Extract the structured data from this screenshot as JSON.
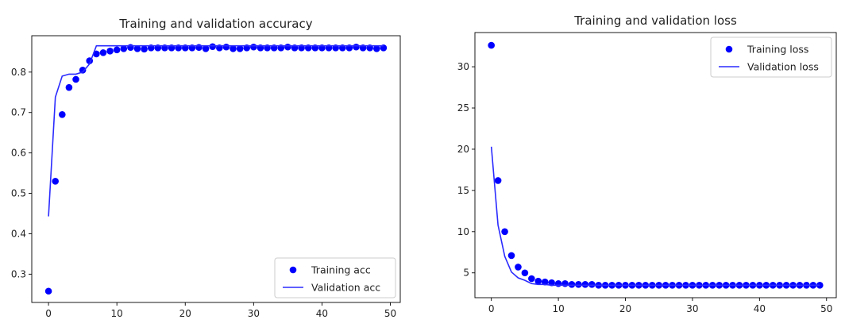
{
  "chart_data": [
    {
      "type": "line",
      "title": "Training and validation accuracy",
      "xlabel": "",
      "ylabel": "",
      "xlim": [
        -2.45,
        51.45
      ],
      "ylim": [
        0.23,
        0.89
      ],
      "xticks": [
        0,
        10,
        20,
        30,
        40,
        50
      ],
      "yticks": [
        0.3,
        0.4,
        0.5,
        0.6,
        0.7,
        0.8
      ],
      "ytick_labels": [
        "0.3",
        "0.4",
        "0.5",
        "0.6",
        "0.7",
        "0.8"
      ],
      "grid": false,
      "legend_position": "lower right",
      "series": [
        {
          "name": "Training acc",
          "style": "dots",
          "color": "#0000ff",
          "x": [
            0,
            1,
            2,
            3,
            4,
            5,
            6,
            7,
            8,
            9,
            10,
            11,
            12,
            13,
            14,
            15,
            16,
            17,
            18,
            19,
            20,
            21,
            22,
            23,
            24,
            25,
            26,
            27,
            28,
            29,
            30,
            31,
            32,
            33,
            34,
            35,
            36,
            37,
            38,
            39,
            40,
            41,
            42,
            43,
            44,
            45,
            46,
            47,
            48,
            49
          ],
          "y": [
            0.258,
            0.53,
            0.695,
            0.762,
            0.782,
            0.805,
            0.828,
            0.845,
            0.848,
            0.852,
            0.855,
            0.858,
            0.861,
            0.858,
            0.857,
            0.86,
            0.86,
            0.86,
            0.86,
            0.86,
            0.86,
            0.86,
            0.861,
            0.858,
            0.863,
            0.86,
            0.862,
            0.858,
            0.858,
            0.86,
            0.862,
            0.86,
            0.86,
            0.86,
            0.86,
            0.862,
            0.86,
            0.86,
            0.86,
            0.86,
            0.86,
            0.86,
            0.86,
            0.86,
            0.86,
            0.862,
            0.86,
            0.86,
            0.858,
            0.86
          ]
        },
        {
          "name": "Validation acc",
          "style": "line",
          "color": "#2b2bff",
          "x": [
            0,
            1,
            2,
            3,
            4,
            5,
            6,
            7,
            8,
            9,
            10,
            11,
            12,
            13,
            14,
            15,
            16,
            17,
            18,
            19,
            20,
            21,
            22,
            23,
            24,
            25,
            26,
            27,
            28,
            29,
            30,
            31,
            32,
            33,
            34,
            35,
            36,
            37,
            38,
            39,
            40,
            41,
            42,
            43,
            44,
            45,
            46,
            47,
            48,
            49
          ],
          "y": [
            0.443,
            0.738,
            0.79,
            0.795,
            0.795,
            0.8,
            0.82,
            0.865,
            0.865,
            0.865,
            0.865,
            0.865,
            0.865,
            0.865,
            0.865,
            0.865,
            0.865,
            0.865,
            0.865,
            0.865,
            0.865,
            0.865,
            0.865,
            0.865,
            0.865,
            0.865,
            0.865,
            0.865,
            0.865,
            0.865,
            0.865,
            0.865,
            0.865,
            0.865,
            0.865,
            0.865,
            0.865,
            0.865,
            0.865,
            0.865,
            0.865,
            0.865,
            0.865,
            0.865,
            0.865,
            0.865,
            0.865,
            0.865,
            0.865,
            0.865
          ]
        }
      ]
    },
    {
      "type": "line",
      "title": "Training and validation loss",
      "xlabel": "",
      "ylabel": "",
      "xlim": [
        -2.45,
        51.45
      ],
      "ylim": [
        1.99,
        34.15
      ],
      "xticks": [
        0,
        10,
        20,
        30,
        40,
        50
      ],
      "yticks": [
        5,
        10,
        15,
        20,
        25,
        30
      ],
      "ytick_labels": [
        "5",
        "10",
        "15",
        "20",
        "25",
        "30"
      ],
      "grid": false,
      "legend_position": "upper right",
      "series": [
        {
          "name": "Training loss",
          "style": "dots",
          "color": "#0000ff",
          "x": [
            0,
            1,
            2,
            3,
            4,
            5,
            6,
            7,
            8,
            9,
            10,
            11,
            12,
            13,
            14,
            15,
            16,
            17,
            18,
            19,
            20,
            21,
            22,
            23,
            24,
            25,
            26,
            27,
            28,
            29,
            30,
            31,
            32,
            33,
            34,
            35,
            36,
            37,
            38,
            39,
            40,
            41,
            42,
            43,
            44,
            45,
            46,
            47,
            48,
            49
          ],
          "y": [
            32.6,
            16.2,
            10.0,
            7.1,
            5.7,
            5.0,
            4.3,
            4.0,
            3.9,
            3.8,
            3.7,
            3.7,
            3.6,
            3.6,
            3.6,
            3.6,
            3.5,
            3.5,
            3.5,
            3.5,
            3.5,
            3.5,
            3.5,
            3.5,
            3.5,
            3.5,
            3.5,
            3.5,
            3.5,
            3.5,
            3.5,
            3.5,
            3.5,
            3.5,
            3.5,
            3.5,
            3.5,
            3.5,
            3.5,
            3.5,
            3.5,
            3.5,
            3.5,
            3.5,
            3.5,
            3.5,
            3.5,
            3.5,
            3.5,
            3.5
          ]
        },
        {
          "name": "Validation loss",
          "style": "line",
          "color": "#2b2bff",
          "x": [
            0,
            1,
            2,
            3,
            4,
            5,
            6,
            7,
            8,
            9,
            10,
            11,
            12,
            13,
            14,
            15,
            16,
            17,
            18,
            19,
            20,
            21,
            22,
            23,
            24,
            25,
            26,
            27,
            28,
            29,
            30,
            31,
            32,
            33,
            34,
            35,
            36,
            37,
            38,
            39,
            40,
            41,
            42,
            43,
            44,
            45,
            46,
            47,
            48,
            49
          ],
          "y": [
            20.3,
            10.8,
            7.0,
            5.1,
            4.4,
            4.1,
            3.7,
            3.6,
            3.6,
            3.5,
            3.5,
            3.5,
            3.5,
            3.5,
            3.5,
            3.5,
            3.5,
            3.5,
            3.5,
            3.5,
            3.5,
            3.5,
            3.5,
            3.5,
            3.5,
            3.5,
            3.5,
            3.5,
            3.5,
            3.5,
            3.5,
            3.5,
            3.5,
            3.5,
            3.5,
            3.5,
            3.5,
            3.5,
            3.5,
            3.5,
            3.5,
            3.5,
            3.5,
            3.5,
            3.5,
            3.5,
            3.5,
            3.5,
            3.5,
            3.5
          ]
        }
      ]
    }
  ]
}
